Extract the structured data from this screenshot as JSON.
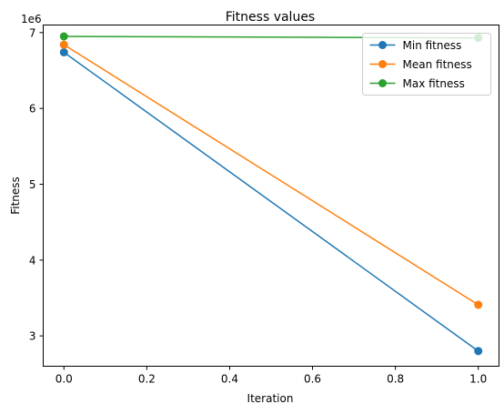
{
  "chart_data": {
    "type": "line",
    "title": "Fitness values",
    "xlabel": "Iteration",
    "ylabel": "Fitness",
    "y_offset_label": "1e6",
    "x": [
      0.0,
      1.0
    ],
    "xlim": [
      -0.05,
      1.05
    ],
    "ylim": [
      2.6,
      7.1
    ],
    "x_ticks": [
      0.0,
      0.2,
      0.4,
      0.6,
      0.8,
      1.0
    ],
    "x_tick_labels": [
      "0.0",
      "0.2",
      "0.4",
      "0.6",
      "0.8",
      "1.0"
    ],
    "y_ticks": [
      3,
      4,
      5,
      6,
      7
    ],
    "y_tick_labels": [
      "3",
      "4",
      "5",
      "6",
      "7"
    ],
    "grid": false,
    "legend_position": "top-right",
    "series": [
      {
        "name": "Min fitness",
        "color": "#1f77b4",
        "values": [
          6.74,
          2.8
        ]
      },
      {
        "name": "Mean fitness",
        "color": "#ff7f0e",
        "values": [
          6.84,
          3.41
        ]
      },
      {
        "name": "Max fitness",
        "color": "#2ca02c",
        "values": [
          6.95,
          6.93
        ]
      }
    ]
  }
}
